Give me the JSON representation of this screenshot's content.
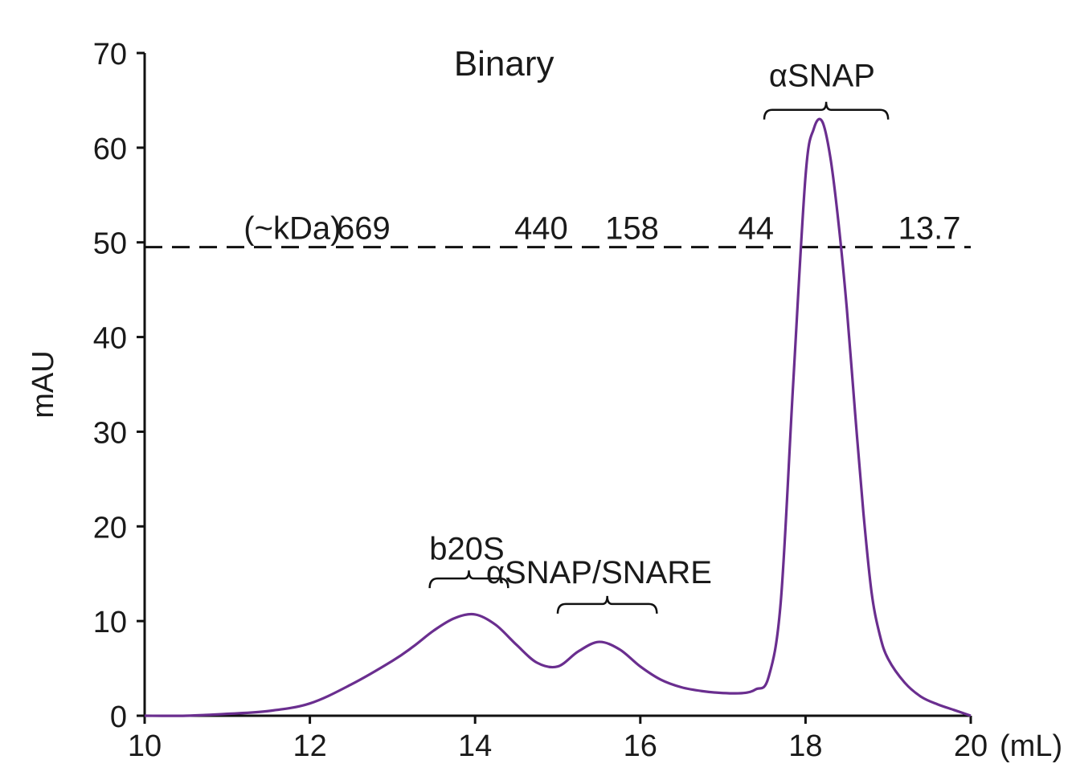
{
  "chart_data": {
    "type": "line",
    "title": "Binary",
    "xlabel": "(mL)",
    "ylabel": "mAU",
    "xlim": [
      10,
      20
    ],
    "ylim": [
      0,
      70
    ],
    "x_ticks": [
      10,
      12,
      14,
      16,
      18,
      20
    ],
    "y_ticks": [
      0,
      10,
      20,
      30,
      40,
      50,
      60,
      70
    ],
    "grid": false,
    "color": "#6a2e8f",
    "series": [
      {
        "x": [
          10.0,
          10.5,
          11.0,
          11.5,
          12.0,
          12.5,
          13.0,
          13.25,
          13.5,
          13.75,
          14.0,
          14.25,
          14.5,
          14.75,
          15.0,
          15.25,
          15.5,
          15.75,
          16.0,
          16.25,
          16.5,
          16.75,
          17.0,
          17.25,
          17.4,
          17.55,
          17.7,
          17.85,
          18.0,
          18.1,
          18.2,
          18.3,
          18.4,
          18.5,
          18.6,
          18.7,
          18.8,
          18.9,
          19.0,
          19.2,
          19.4,
          19.6,
          19.8,
          20.0
        ],
        "y": [
          0.0,
          0.0,
          0.2,
          0.5,
          1.3,
          3.3,
          5.8,
          7.3,
          9.0,
          10.3,
          10.7,
          9.6,
          7.5,
          5.6,
          5.2,
          6.8,
          7.8,
          7.0,
          5.2,
          3.8,
          3.0,
          2.6,
          2.4,
          2.4,
          2.8,
          4.0,
          12.0,
          35.0,
          57.0,
          62.0,
          62.8,
          59.0,
          52.0,
          43.0,
          32.0,
          21.5,
          13.0,
          8.5,
          6.0,
          3.5,
          2.0,
          1.2,
          0.6,
          0.0
        ]
      }
    ],
    "reference_line": {
      "y": 49.5,
      "units_label": "(~kDa)",
      "markers": [
        {
          "label": "669",
          "x": 12.65
        },
        {
          "label": "440",
          "x": 14.8
        },
        {
          "label": "158",
          "x": 15.9
        },
        {
          "label": "44",
          "x": 17.4
        },
        {
          "label": "13.7",
          "x": 19.5
        }
      ]
    },
    "annotations": [
      {
        "text": "b20S",
        "x": 13.9,
        "y": 16.5,
        "bracket": [
          13.45,
          14.4
        ],
        "bracket_y": 14.5
      },
      {
        "text": "αSNAP/SNARE",
        "x": 15.5,
        "y": 14.0,
        "bracket": [
          15.0,
          16.2
        ],
        "bracket_y": 11.8
      },
      {
        "text": "αSNAP",
        "x": 18.2,
        "y": 66.5,
        "bracket": [
          17.5,
          19.0
        ],
        "bracket_y": 64.0
      }
    ]
  }
}
